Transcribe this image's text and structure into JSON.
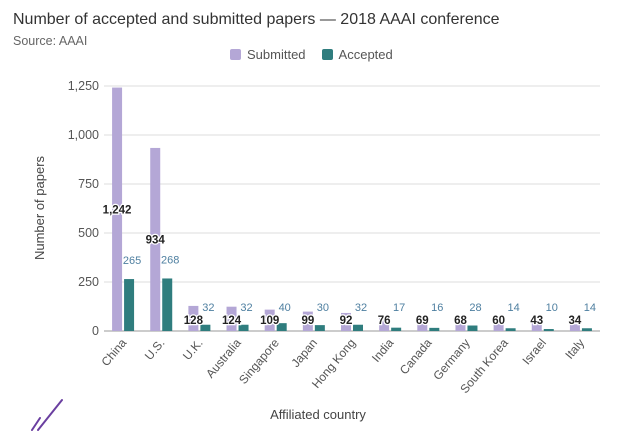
{
  "chart_data": {
    "type": "bar",
    "title": "Number of accepted and submitted papers — 2018 AAAI conference",
    "subtitle": "Source: AAAI",
    "xlabel": "Affiliated country",
    "ylabel": "Number of papers",
    "ylim": [
      0,
      1250
    ],
    "yticks": [
      "0",
      "250",
      "500",
      "750",
      "1,000",
      "1,250"
    ],
    "grid": true,
    "legend_position": "top",
    "categories": [
      "China",
      "U.S.",
      "U.K.",
      "Australia",
      "Singapore",
      "Japan",
      "Hong Kong",
      "India",
      "Canada",
      "Germany",
      "South Korea",
      "Israel",
      "Italy"
    ],
    "series": [
      {
        "name": "Submitted",
        "color": "#b4a7d6",
        "values": [
          1242,
          934,
          128,
          124,
          109,
          99,
          92,
          76,
          69,
          68,
          60,
          43,
          34
        ],
        "labels": [
          "1,242",
          "934",
          "128",
          "124",
          "109",
          "99",
          "92",
          "76",
          "69",
          "68",
          "60",
          "43",
          "34"
        ]
      },
      {
        "name": "Accepted",
        "color": "#2f7d7e",
        "values": [
          265,
          268,
          32,
          32,
          40,
          30,
          32,
          17,
          16,
          28,
          14,
          10,
          14
        ],
        "labels": [
          "265",
          "268",
          "32",
          "32",
          "40",
          "30",
          "32",
          "17",
          "16",
          "28",
          "14",
          "10",
          "14"
        ]
      }
    ]
  }
}
